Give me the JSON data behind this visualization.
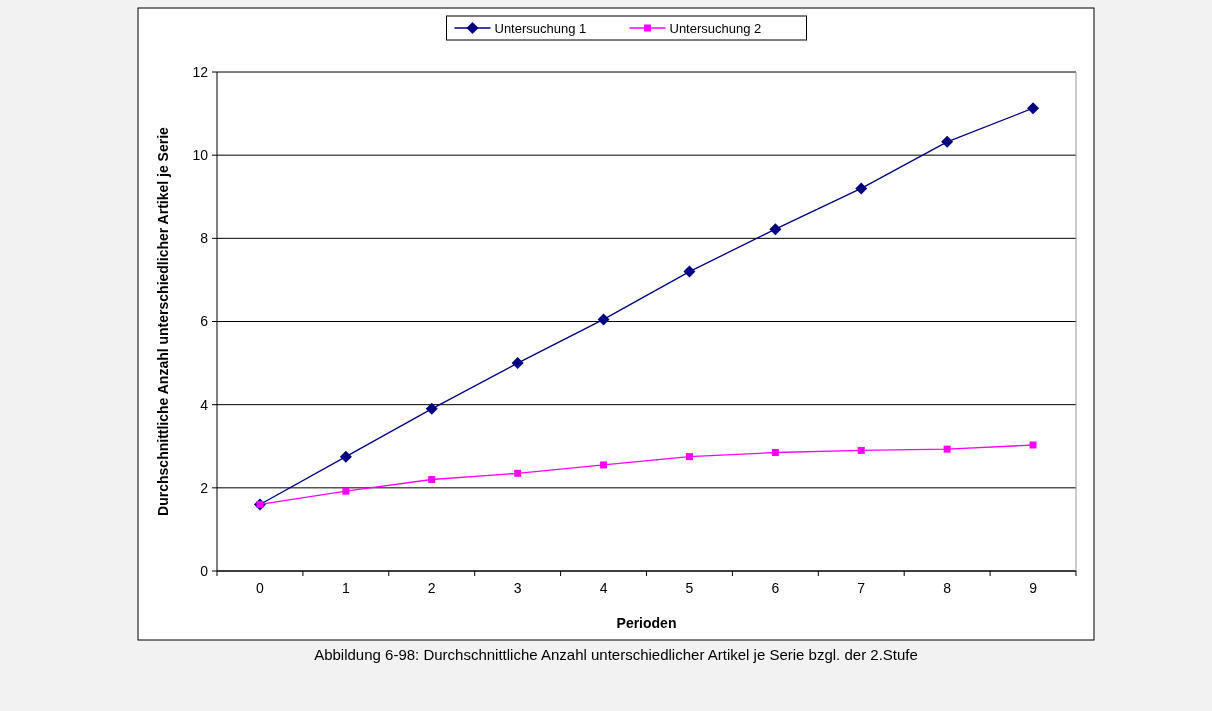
{
  "chart_data": {
    "type": "line",
    "xlabel": "Perioden",
    "ylabel": "Durchschnittliche Anzahl unterschiedlicher Artikel je Serie",
    "categories": [
      "0",
      "1",
      "2",
      "3",
      "4",
      "5",
      "6",
      "7",
      "8",
      "9"
    ],
    "series": [
      {
        "name": "Untersuchung 1",
        "color": "#000080",
        "marker": "diamond",
        "values": [
          1.6,
          2.75,
          3.9,
          5.0,
          6.05,
          7.2,
          8.22,
          9.2,
          10.32,
          11.13
        ]
      },
      {
        "name": "Untersuchung 2",
        "color": "#ff00ff",
        "marker": "square",
        "values": [
          1.6,
          1.92,
          2.2,
          2.35,
          2.55,
          2.75,
          2.85,
          2.9,
          2.93,
          3.03
        ]
      }
    ],
    "ylim": [
      0,
      12
    ],
    "yticks": [
      0,
      2,
      4,
      6,
      8,
      10,
      12
    ],
    "grid": "y",
    "legend": "top",
    "annotations": [
      "Abbildung 6-98: Durchschnittliche Anzahl unterschiedlicher Artikel je Serie bzgl. der 2.Stufe"
    ]
  }
}
